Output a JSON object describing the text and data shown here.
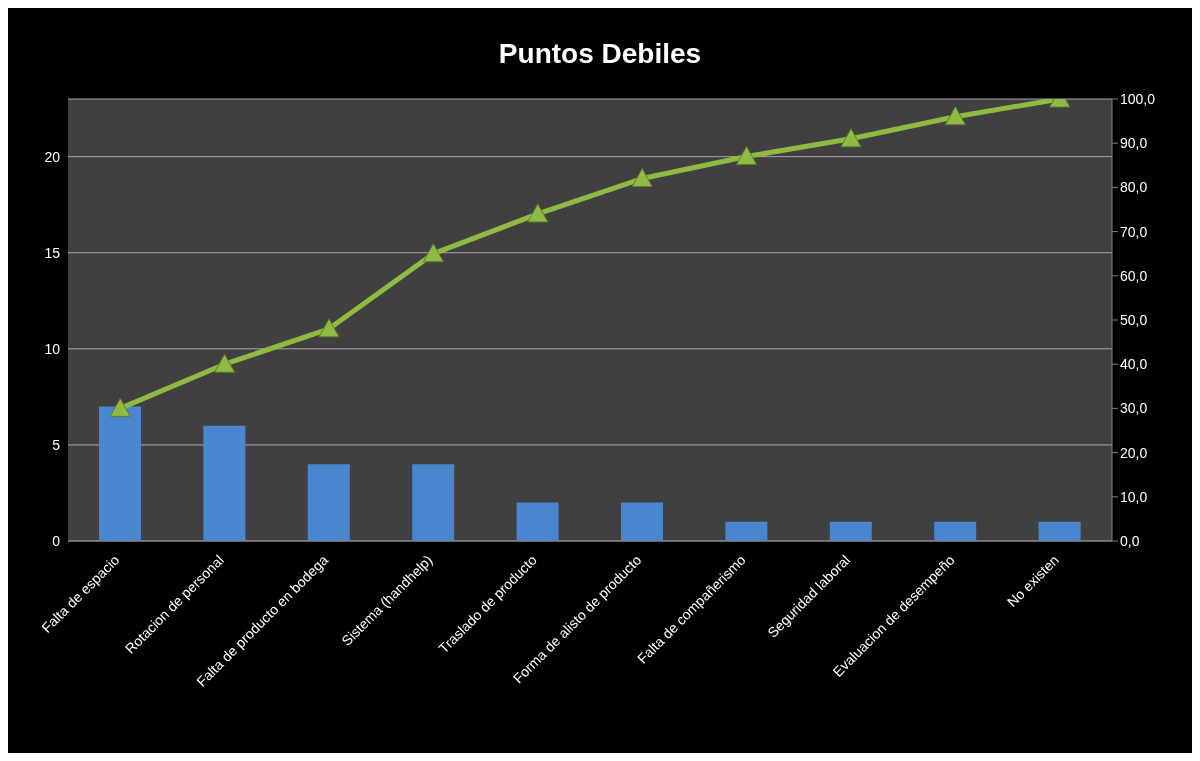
{
  "chart_data": {
    "type": "bar",
    "title": "Puntos Debiles",
    "categories": [
      "Falta de espacio",
      "Rotacion de personal",
      "Falta de producto en bodega",
      "Sistema (handhelp)",
      "Traslado de producto",
      "Forma de alisto de producto",
      "Falta de compañerismo",
      "Seguridad laboral",
      "Evaluacion de desempeño",
      "No existen"
    ],
    "series": [
      {
        "color": "#4a86d0",
        "values": [
          7,
          6,
          4,
          4,
          2,
          2,
          1,
          1,
          1,
          1
        ]
      },
      {
        "type": "line",
        "axis": "y2",
        "color": "#8fbb44",
        "marker": "triangle",
        "values": [
          30,
          40,
          48,
          65,
          74,
          82,
          87,
          91,
          96,
          100
        ]
      }
    ],
    "ylim": [
      0,
      23
    ],
    "yticks": [
      0,
      5,
      10,
      15,
      20
    ],
    "y2lim": [
      0,
      100
    ],
    "y2ticks": [
      {
        "value": 0,
        "label": "0,0"
      },
      {
        "value": 10,
        "label": "10,0"
      },
      {
        "value": 20,
        "label": "20,0"
      },
      {
        "value": 30,
        "label": "30,0"
      },
      {
        "value": 40,
        "label": "40,0"
      },
      {
        "value": 50,
        "label": "50,0"
      },
      {
        "value": 60,
        "label": "60,0"
      },
      {
        "value": 70,
        "label": "70,0"
      },
      {
        "value": 80,
        "label": "80,0"
      },
      {
        "value": 90,
        "label": "90,0"
      },
      {
        "value": 100,
        "label": "100,0"
      }
    ],
    "grid": "y",
    "legend": false
  }
}
